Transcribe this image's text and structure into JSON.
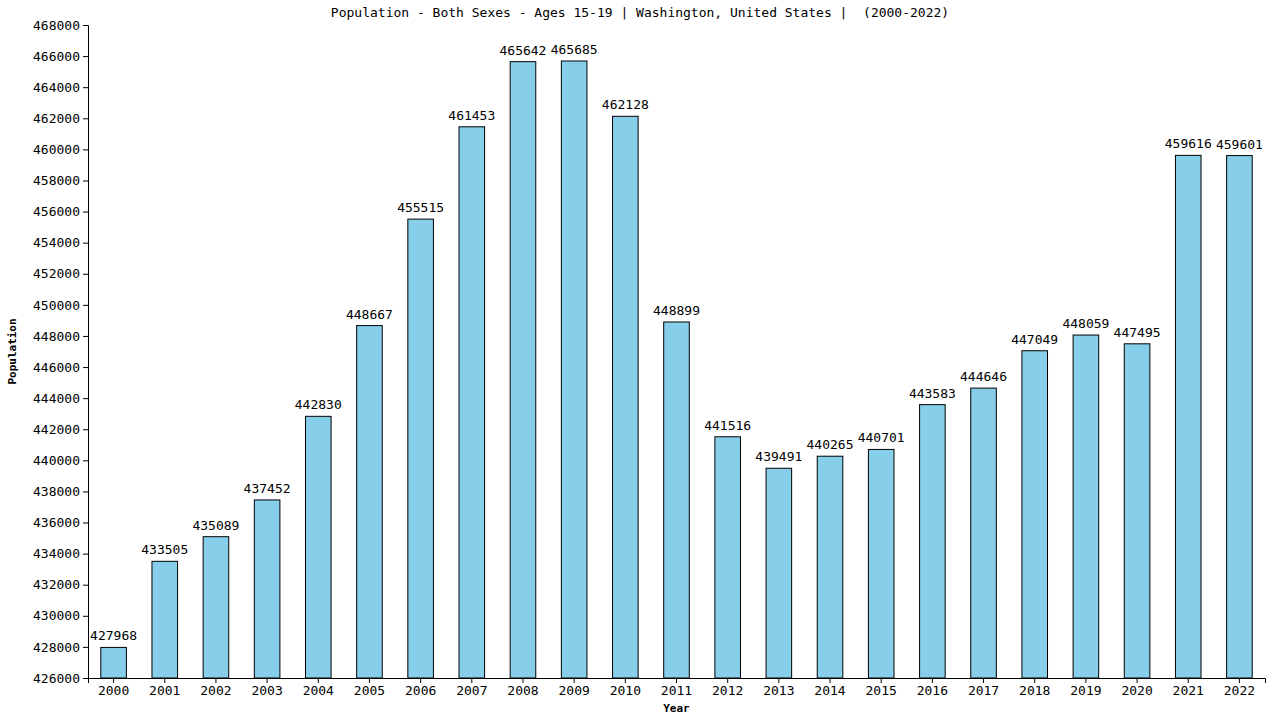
{
  "chart_data": {
    "type": "bar",
    "title": "Population - Both Sexes - Ages 15-19 | Washington, United States |  (2000-2022)",
    "x_label": "Year",
    "y_label": "Population",
    "categories": [
      "2000",
      "2001",
      "2002",
      "2003",
      "2004",
      "2005",
      "2006",
      "2007",
      "2008",
      "2009",
      "2010",
      "2011",
      "2012",
      "2013",
      "2014",
      "2015",
      "2016",
      "2017",
      "2018",
      "2019",
      "2020",
      "2021",
      "2022"
    ],
    "values": [
      427968,
      433505,
      435089,
      437452,
      442830,
      448667,
      455515,
      461453,
      465642,
      465685,
      462128,
      448899,
      441516,
      439491,
      440265,
      440701,
      443583,
      444646,
      447049,
      448059,
      447495,
      459616,
      459601
    ],
    "color": "#87ceeb",
    "ylim": [
      426000,
      468000
    ],
    "yticks": [
      426000,
      428000,
      430000,
      432000,
      434000,
      436000,
      438000,
      440000,
      442000,
      444000,
      446000,
      448000,
      450000,
      452000,
      454000,
      456000,
      458000,
      460000,
      462000,
      464000,
      466000,
      468000
    ],
    "grid": false,
    "data_labels": true
  }
}
